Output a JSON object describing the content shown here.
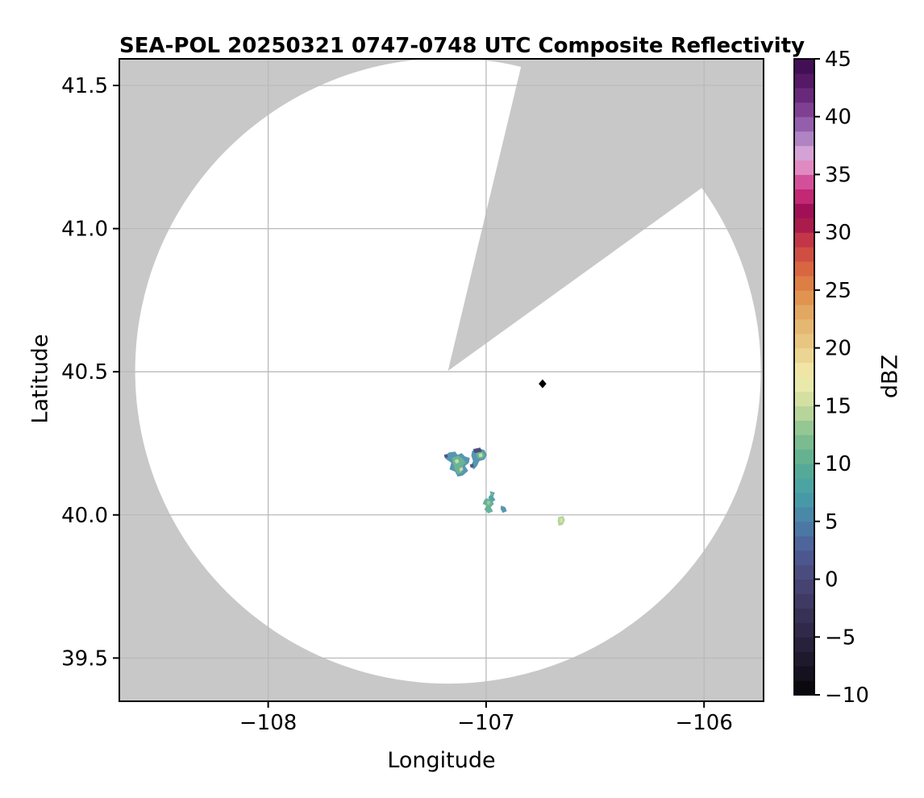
{
  "figure": {
    "background": "#ffffff",
    "text_color": "#000000",
    "spine_color": "#000000"
  },
  "chart_data": {
    "type": "heatmap",
    "title": "SEA-POL 20250321 0747-0748 UTC Composite Reflectivity",
    "xlabel": "Longitude",
    "ylabel": "Latitude",
    "xlim": [
      -108.683,
      -105.727
    ],
    "ylim": [
      39.349,
      41.593
    ],
    "grid": true,
    "grid_color": "#bababa",
    "nodata_color": "#c8c8c8",
    "coverage_color": "#ffffff",
    "xticks": [
      {
        "v": -108,
        "label": "−108"
      },
      {
        "v": -107,
        "label": "−107"
      },
      {
        "v": -106,
        "label": "−106"
      }
    ],
    "yticks": [
      {
        "v": 41.5,
        "label": "41.5"
      },
      {
        "v": 41.0,
        "label": "41.0"
      },
      {
        "v": 40.5,
        "label": "40.5"
      },
      {
        "v": 40.0,
        "label": "40.0"
      },
      {
        "v": 39.5,
        "label": "39.5"
      }
    ],
    "radar": {
      "center_lon": -107.175,
      "center_lat": 40.503,
      "range_lon_deg": 1.4354,
      "range_lat_deg": 1.0923,
      "blocked_azimuth_deg": [
        13.5,
        54.2
      ]
    },
    "site_marker": {
      "lon": -106.741,
      "lat": 40.458,
      "shape": "diamond",
      "color": "#000000"
    },
    "colorbar": {
      "label": "dBZ",
      "min": -10,
      "max": 45,
      "block_step": 1.25,
      "ticks": [
        {
          "v": 45,
          "label": "45"
        },
        {
          "v": 40,
          "label": "40"
        },
        {
          "v": 35,
          "label": "35"
        },
        {
          "v": 30,
          "label": "30"
        },
        {
          "v": 25,
          "label": "25"
        },
        {
          "v": 20,
          "label": "20"
        },
        {
          "v": 15,
          "label": "15"
        },
        {
          "v": 10,
          "label": "10"
        },
        {
          "v": 5,
          "label": "5"
        },
        {
          "v": 0,
          "label": "0"
        },
        {
          "v": -5,
          "label": "−5"
        },
        {
          "v": -10,
          "label": "−10"
        }
      ],
      "stops": [
        [
          -10,
          "#060508"
        ],
        [
          -7.5,
          "#1a1526"
        ],
        [
          -5,
          "#2c2542"
        ],
        [
          -2.5,
          "#3c355d"
        ],
        [
          0,
          "#494678"
        ],
        [
          2.5,
          "#4e5c96"
        ],
        [
          5,
          "#4a80aa"
        ],
        [
          7.5,
          "#47a1a7"
        ],
        [
          10,
          "#5aad92"
        ],
        [
          12.5,
          "#84c08f"
        ],
        [
          15,
          "#c8dc9d"
        ],
        [
          17.5,
          "#f2edae"
        ],
        [
          20,
          "#e9cd88"
        ],
        [
          22.5,
          "#e3b16b"
        ],
        [
          25,
          "#df8a45"
        ],
        [
          27.5,
          "#d55a3f"
        ],
        [
          29.5,
          "#c23447"
        ],
        [
          31.5,
          "#96094e"
        ],
        [
          33,
          "#c02470"
        ],
        [
          34.5,
          "#d6539e"
        ],
        [
          36,
          "#e39ccc"
        ],
        [
          37,
          "#d3a3d6"
        ],
        [
          38.5,
          "#a478bd"
        ],
        [
          40,
          "#8a4ba0"
        ],
        [
          42.5,
          "#5e1e6e"
        ],
        [
          45,
          "#390a4e"
        ]
      ]
    },
    "echoes": [
      {
        "id": "west-cell",
        "layers": [
          {
            "dbz": 6,
            "pts": [
              [
                -107.19,
                40.204
              ],
              [
                -107.171,
                40.218
              ],
              [
                -107.142,
                40.221
              ],
              [
                -107.131,
                40.21
              ],
              [
                -107.112,
                40.216
              ],
              [
                -107.097,
                40.204
              ],
              [
                -107.075,
                40.199
              ],
              [
                -107.079,
                40.182
              ],
              [
                -107.097,
                40.171
              ],
              [
                -107.082,
                40.154
              ],
              [
                -107.108,
                40.137
              ],
              [
                -107.131,
                40.134
              ],
              [
                -107.142,
                40.151
              ],
              [
                -107.168,
                40.159
              ],
              [
                -107.16,
                40.182
              ],
              [
                -107.186,
                40.196
              ]
            ]
          },
          {
            "dbz": 11,
            "pts": [
              [
                -107.156,
                40.199
              ],
              [
                -107.127,
                40.207
              ],
              [
                -107.105,
                40.196
              ],
              [
                -107.094,
                40.182
              ],
              [
                -107.116,
                40.165
              ],
              [
                -107.108,
                40.148
              ],
              [
                -107.131,
                40.142
              ],
              [
                -107.145,
                40.162
              ],
              [
                -107.153,
                40.182
              ]
            ]
          },
          {
            "dbz": 15.5,
            "pts": [
              [
                -107.145,
                40.19
              ],
              [
                -107.131,
                40.196
              ],
              [
                -107.123,
                40.185
              ],
              [
                -107.138,
                40.179
              ]
            ]
          },
          {
            "dbz": 15.5,
            "pts": [
              [
                -107.123,
                40.162
              ],
              [
                -107.108,
                40.168
              ],
              [
                -107.105,
                40.157
              ],
              [
                -107.119,
                40.151
              ]
            ]
          },
          {
            "dbz": 1,
            "pts": [
              [
                -107.193,
                40.21
              ],
              [
                -107.179,
                40.213
              ],
              [
                -107.175,
                40.201
              ],
              [
                -107.19,
                40.199
              ]
            ]
          }
        ]
      },
      {
        "id": "northeast-cell",
        "layers": [
          {
            "dbz": 6,
            "pts": [
              [
                -107.064,
                40.224
              ],
              [
                -107.034,
                40.232
              ],
              [
                -107.008,
                40.227
              ],
              [
                -106.997,
                40.21
              ],
              [
                -107.008,
                40.193
              ],
              [
                -107.031,
                40.188
              ],
              [
                -107.042,
                40.171
              ],
              [
                -107.056,
                40.159
              ],
              [
                -107.071,
                40.168
              ],
              [
                -107.06,
                40.188
              ],
              [
                -107.068,
                40.207
              ]
            ]
          },
          {
            "dbz": 11,
            "pts": [
              [
                -107.045,
                40.218
              ],
              [
                -107.016,
                40.221
              ],
              [
                -107.005,
                40.207
              ],
              [
                -107.019,
                40.196
              ],
              [
                -107.042,
                40.199
              ]
            ]
          },
          {
            "dbz": 15.5,
            "pts": [
              [
                -107.034,
                40.213
              ],
              [
                -107.019,
                40.216
              ],
              [
                -107.016,
                40.204
              ],
              [
                -107.031,
                40.201
              ]
            ]
          },
          {
            "dbz": 0,
            "pts": [
              [
                -107.06,
                40.23
              ],
              [
                -107.027,
                40.235
              ],
              [
                -107.019,
                40.221
              ],
              [
                -107.053,
                40.216
              ]
            ]
          },
          {
            "dbz": 1,
            "pts": [
              [
                -107.075,
                40.176
              ],
              [
                -107.06,
                40.179
              ],
              [
                -107.056,
                40.168
              ],
              [
                -107.071,
                40.165
              ]
            ]
          }
        ]
      },
      {
        "id": "south-cluster-a",
        "layers": [
          {
            "dbz": 7,
            "pts": [
              [
                -106.983,
                40.083
              ],
              [
                -106.96,
                40.078
              ],
              [
                -106.968,
                40.064
              ],
              [
                -106.957,
                40.052
              ],
              [
                -106.975,
                40.044
              ],
              [
                -106.99,
                40.061
              ],
              [
                -106.979,
                40.072
              ]
            ]
          },
          {
            "dbz": 12,
            "pts": [
              [
                -106.979,
                40.078
              ],
              [
                -106.968,
                40.075
              ],
              [
                -106.975,
                40.066
              ],
              [
                -106.983,
                40.069
              ]
            ]
          }
        ]
      },
      {
        "id": "south-cluster-b",
        "layers": [
          {
            "dbz": 10,
            "pts": [
              [
                -107.001,
                40.058
              ],
              [
                -106.975,
                40.055
              ],
              [
                -106.964,
                40.038
              ],
              [
                -106.979,
                40.027
              ],
              [
                -106.968,
                40.013
              ],
              [
                -106.99,
                40.005
              ],
              [
                -107.008,
                40.019
              ],
              [
                -106.997,
                40.033
              ],
              [
                -107.016,
                40.038
              ],
              [
                -107.008,
                40.052
              ]
            ]
          },
          {
            "dbz": 13.5,
            "pts": [
              [
                -106.994,
                40.05
              ],
              [
                -106.979,
                40.047
              ],
              [
                -106.986,
                40.035
              ],
              [
                -106.997,
                40.038
              ]
            ]
          }
        ]
      },
      {
        "id": "south-cluster-c",
        "layers": [
          {
            "dbz": 6,
            "pts": [
              [
                -106.931,
                40.033
              ],
              [
                -106.912,
                40.027
              ],
              [
                -106.905,
                40.013
              ],
              [
                -106.924,
                40.007
              ],
              [
                -106.934,
                40.021
              ]
            ]
          }
        ]
      },
      {
        "id": "southeast-cell",
        "layers": [
          {
            "dbz": 14,
            "pts": [
              [
                -106.668,
                39.993
              ],
              [
                -106.646,
                39.996
              ],
              [
                -106.638,
                39.982
              ],
              [
                -106.649,
                39.965
              ],
              [
                -106.668,
                39.962
              ],
              [
                -106.672,
                39.979
              ]
            ]
          },
          {
            "dbz": 16,
            "pts": [
              [
                -106.661,
                39.988
              ],
              [
                -106.649,
                39.988
              ],
              [
                -106.649,
                39.974
              ],
              [
                -106.661,
                39.974
              ]
            ]
          }
        ]
      }
    ]
  }
}
